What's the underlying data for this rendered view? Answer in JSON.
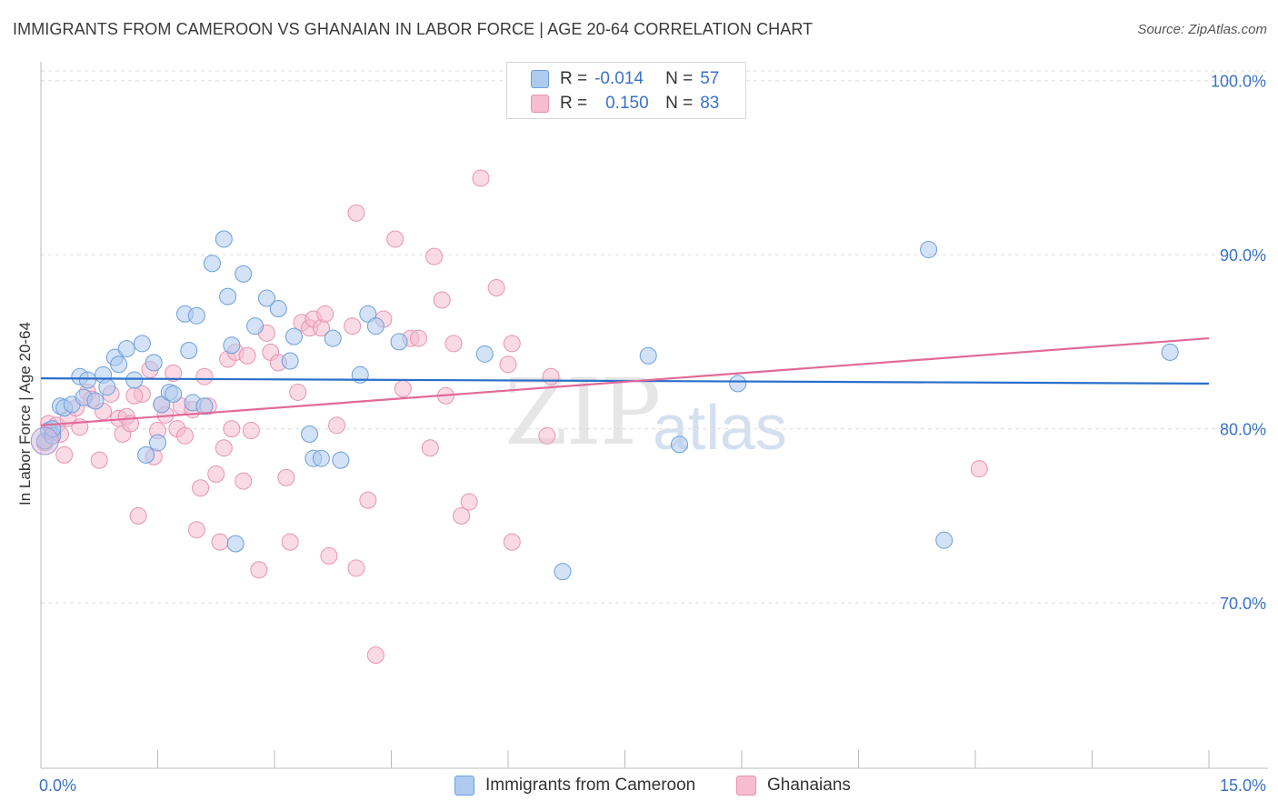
{
  "title": "IMMIGRANTS FROM CAMEROON VS GHANAIAN IN LABOR FORCE | AGE 20-64 CORRELATION CHART",
  "source": "Source: ZipAtlas.com",
  "watermark": {
    "zip": "ZIP",
    "atlas": "atlas"
  },
  "legend": {
    "row1": {
      "r_label": "R =",
      "r_value": "-0.014",
      "n_label": "N =",
      "n_value": "57"
    },
    "row2": {
      "r_label": "R =",
      "r_value": "0.150",
      "n_label": "N =",
      "n_value": "83"
    }
  },
  "bottom_legend": {
    "series1": "Immigrants from Cameroon",
    "series2": "Ghanaians"
  },
  "colors": {
    "blue_fill": "#aecbef",
    "blue_stroke": "#6b9fdc",
    "blue_line": "#2a6fc9",
    "pink_fill": "#f6bcd0",
    "pink_stroke": "#e793b2",
    "pink_line": "#e06a98",
    "tick_text": "#3a72c8",
    "grid": "#dddddd"
  },
  "chart_data": {
    "type": "scatter",
    "title": "IMMIGRANTS FROM CAMEROON VS GHANAIAN IN LABOR FORCE | AGE 20-64 CORRELATION CHART",
    "xlabel": "",
    "ylabel": "In Labor Force | Age 20-64",
    "xlim": [
      0,
      15
    ],
    "ylim": [
      60.5,
      101.5
    ],
    "x_tick_labels": [
      "0.0%",
      "15.0%"
    ],
    "y_ticks": [
      70,
      80,
      90,
      100
    ],
    "y_tick_labels": [
      "70.0%",
      "80.0%",
      "90.0%",
      "100.0%"
    ],
    "grid": true,
    "legend_position": "top-center",
    "series": [
      {
        "name": "Immigrants from Cameroon",
        "r": -0.014,
        "n": 57,
        "trend": {
          "x": [
            0,
            15
          ],
          "y": [
            82.9,
            82.6
          ]
        },
        "points": [
          [
            0.05,
            79.3
          ],
          [
            0.1,
            79.9
          ],
          [
            0.15,
            79.6
          ],
          [
            0.25,
            81.3
          ],
          [
            0.3,
            81.2
          ],
          [
            0.4,
            81.4
          ],
          [
            0.5,
            83.0
          ],
          [
            0.55,
            81.8
          ],
          [
            0.6,
            82.8
          ],
          [
            0.7,
            81.6
          ],
          [
            0.8,
            83.1
          ],
          [
            0.85,
            82.4
          ],
          [
            0.95,
            84.1
          ],
          [
            1.0,
            83.7
          ],
          [
            1.1,
            84.6
          ],
          [
            1.2,
            82.8
          ],
          [
            1.3,
            84.9
          ],
          [
            1.35,
            78.5
          ],
          [
            1.45,
            83.8
          ],
          [
            1.5,
            79.2
          ],
          [
            1.55,
            81.4
          ],
          [
            1.65,
            82.1
          ],
          [
            1.7,
            82.0
          ],
          [
            1.85,
            86.6
          ],
          [
            1.9,
            84.5
          ],
          [
            1.95,
            81.5
          ],
          [
            2.0,
            86.5
          ],
          [
            2.1,
            81.3
          ],
          [
            2.2,
            89.5
          ],
          [
            2.35,
            90.9
          ],
          [
            2.4,
            87.6
          ],
          [
            2.45,
            84.8
          ],
          [
            2.5,
            73.4
          ],
          [
            2.6,
            88.9
          ],
          [
            2.75,
            85.9
          ],
          [
            2.9,
            87.5
          ],
          [
            3.05,
            86.9
          ],
          [
            3.2,
            83.9
          ],
          [
            3.25,
            85.3
          ],
          [
            3.45,
            79.7
          ],
          [
            3.5,
            78.3
          ],
          [
            3.6,
            78.3
          ],
          [
            3.75,
            85.2
          ],
          [
            3.85,
            78.2
          ],
          [
            4.1,
            83.1
          ],
          [
            4.2,
            86.6
          ],
          [
            4.3,
            85.9
          ],
          [
            4.6,
            85.0
          ],
          [
            5.7,
            84.3
          ],
          [
            6.7,
            71.8
          ],
          [
            7.8,
            84.2
          ],
          [
            8.2,
            79.1
          ],
          [
            8.95,
            82.6
          ],
          [
            11.4,
            90.3
          ],
          [
            11.6,
            73.6
          ],
          [
            14.5,
            84.4
          ],
          [
            0.15,
            80.0
          ]
        ]
      },
      {
        "name": "Ghanaians",
        "r": 0.15,
        "n": 83,
        "trend": {
          "x": [
            0,
            15
          ],
          "y": [
            80.2,
            85.2
          ]
        },
        "points": [
          [
            0.05,
            79.2
          ],
          [
            0.1,
            80.3
          ],
          [
            0.15,
            79.8
          ],
          [
            0.2,
            80.2
          ],
          [
            0.3,
            78.5
          ],
          [
            0.35,
            80.6
          ],
          [
            0.5,
            80.1
          ],
          [
            0.6,
            82.1
          ],
          [
            0.65,
            81.7
          ],
          [
            0.75,
            78.2
          ],
          [
            0.8,
            81.0
          ],
          [
            0.9,
            82.0
          ],
          [
            1.0,
            80.6
          ],
          [
            1.05,
            79.7
          ],
          [
            1.1,
            80.7
          ],
          [
            1.15,
            80.3
          ],
          [
            1.25,
            75.0
          ],
          [
            1.3,
            82.0
          ],
          [
            1.4,
            83.4
          ],
          [
            1.45,
            78.4
          ],
          [
            1.5,
            79.9
          ],
          [
            1.55,
            81.4
          ],
          [
            1.6,
            80.8
          ],
          [
            1.7,
            83.2
          ],
          [
            1.75,
            80.0
          ],
          [
            1.8,
            81.3
          ],
          [
            1.85,
            79.6
          ],
          [
            1.95,
            81.1
          ],
          [
            2.0,
            74.2
          ],
          [
            2.05,
            76.6
          ],
          [
            2.1,
            83.0
          ],
          [
            2.15,
            81.3
          ],
          [
            2.25,
            77.4
          ],
          [
            2.3,
            73.5
          ],
          [
            2.35,
            78.9
          ],
          [
            2.4,
            84.0
          ],
          [
            2.45,
            80.0
          ],
          [
            2.5,
            84.4
          ],
          [
            2.6,
            77.0
          ],
          [
            2.65,
            84.2
          ],
          [
            2.7,
            79.9
          ],
          [
            2.8,
            71.9
          ],
          [
            2.9,
            85.5
          ],
          [
            2.95,
            84.4
          ],
          [
            3.05,
            83.8
          ],
          [
            3.15,
            77.2
          ],
          [
            3.2,
            73.5
          ],
          [
            3.3,
            82.1
          ],
          [
            3.35,
            86.1
          ],
          [
            3.45,
            85.8
          ],
          [
            3.5,
            86.3
          ],
          [
            3.6,
            85.8
          ],
          [
            3.65,
            86.6
          ],
          [
            3.7,
            72.7
          ],
          [
            3.8,
            80.2
          ],
          [
            4.0,
            85.9
          ],
          [
            4.05,
            92.4
          ],
          [
            4.05,
            72.0
          ],
          [
            4.2,
            75.9
          ],
          [
            4.3,
            67.0
          ],
          [
            4.4,
            86.3
          ],
          [
            4.55,
            90.9
          ],
          [
            4.65,
            82.3
          ],
          [
            4.75,
            85.2
          ],
          [
            4.85,
            85.2
          ],
          [
            5.0,
            78.9
          ],
          [
            5.05,
            89.9
          ],
          [
            5.15,
            87.4
          ],
          [
            5.2,
            81.9
          ],
          [
            5.3,
            84.9
          ],
          [
            5.4,
            75.0
          ],
          [
            5.5,
            75.8
          ],
          [
            5.65,
            94.4
          ],
          [
            5.85,
            88.1
          ],
          [
            6.0,
            83.7
          ],
          [
            6.05,
            84.9
          ],
          [
            6.05,
            73.5
          ],
          [
            6.5,
            79.6
          ],
          [
            6.55,
            83.0
          ],
          [
            12.05,
            77.7
          ],
          [
            0.25,
            79.7
          ],
          [
            0.45,
            81.2
          ],
          [
            1.2,
            81.9
          ]
        ]
      }
    ]
  }
}
